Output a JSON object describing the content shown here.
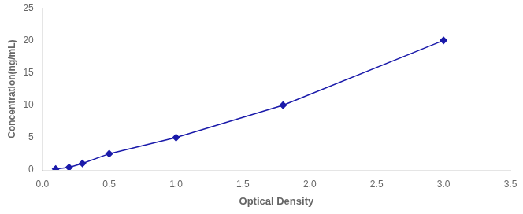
{
  "chart_data": {
    "type": "line",
    "x": [
      0.1,
      0.2,
      0.3,
      0.5,
      1.0,
      1.8,
      3.0
    ],
    "values": [
      0.15,
      0.4,
      1.0,
      2.5,
      5.0,
      10.0,
      20.0
    ],
    "color": "#1a1aaa",
    "marker": "diamond",
    "line_style": "solid",
    "xlabel": "Optical Density",
    "ylabel": "Concentration(ng/mL)",
    "xlim": [
      0,
      3.5
    ],
    "ylim": [
      0,
      25
    ],
    "xticks": [
      {
        "value": 0,
        "label": "0.0"
      },
      0.5,
      {
        "value": 1.0,
        "label": "1.0"
      },
      1.5,
      {
        "value": 2.0,
        "label": "2.0"
      },
      2.5,
      {
        "value": 3.0,
        "label": "3.0"
      },
      3.5
    ],
    "yticks": [
      0,
      5,
      10,
      15,
      20,
      25
    ],
    "grid": false
  }
}
